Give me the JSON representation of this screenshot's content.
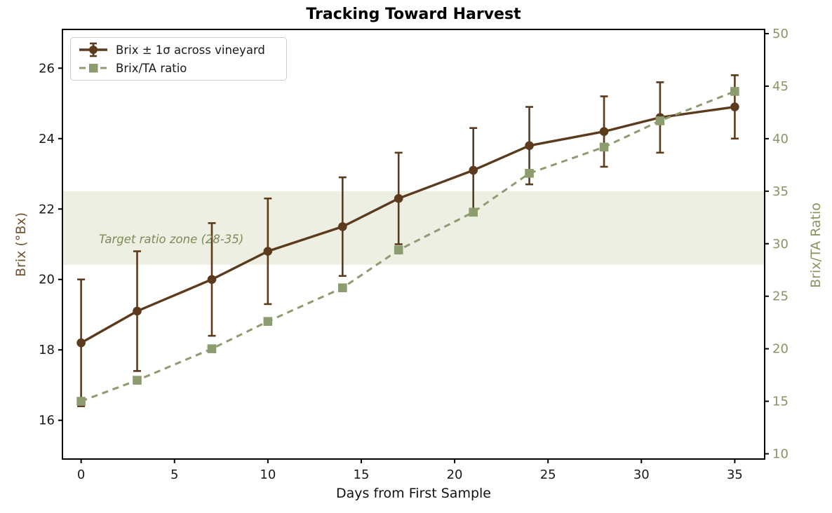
{
  "chart_data": {
    "type": "line",
    "title": "Tracking Toward Harvest",
    "xlabel": "Days from First Sample",
    "ylabel_left": "Brix (°Bx)",
    "ylabel_right": "Brix/TA Ratio",
    "x": [
      0,
      3,
      7,
      10,
      14,
      17,
      21,
      24,
      28,
      31,
      35
    ],
    "series": [
      {
        "name": "Brix ± 1σ across vineyard",
        "axis": "left",
        "marker": "circle",
        "linestyle": "solid",
        "color": "#5c3a1c",
        "values": [
          18.2,
          19.1,
          20.0,
          20.8,
          21.5,
          22.3,
          23.1,
          23.8,
          24.2,
          24.6,
          24.9
        ],
        "std": [
          1.8,
          1.7,
          1.6,
          1.5,
          1.4,
          1.3,
          1.2,
          1.1,
          1.0,
          1.0,
          0.9
        ]
      },
      {
        "name": "Brix/TA ratio",
        "axis": "right",
        "marker": "square",
        "linestyle": "dashed",
        "color": "#8c9c6e",
        "values": [
          15.0,
          17.0,
          20.0,
          22.6,
          25.8,
          29.4,
          33.0,
          36.7,
          39.2,
          41.7,
          44.5
        ]
      }
    ],
    "band": {
      "axis": "right",
      "from": 28,
      "to": 35,
      "color": "#edefe3",
      "label": "Target ratio zone (28-35)",
      "label_color": "#7c8b58"
    },
    "xticks": [
      0,
      5,
      10,
      15,
      20,
      25,
      30,
      35
    ],
    "yticks_left": [
      16,
      18,
      20,
      22,
      24,
      26
    ],
    "yticks_right": [
      10,
      15,
      20,
      25,
      30,
      35,
      40,
      45,
      50
    ],
    "xlim": [
      -1,
      36.6
    ],
    "ylim_left": [
      14.9,
      27.1
    ],
    "ylim_right": [
      9.5,
      50.4
    ],
    "grid": false,
    "legend_position": "upper left",
    "colors": {
      "title": "#000000",
      "xlabel": "#111111",
      "left_axis_label": "#74522e",
      "right_axis_label": "#879561",
      "left_tick_label": "#1a1a1a",
      "right_tick_label": "#879561",
      "x_tick_label": "#1a1a1a",
      "spine": "#000000",
      "background": "#ffffff"
    }
  }
}
